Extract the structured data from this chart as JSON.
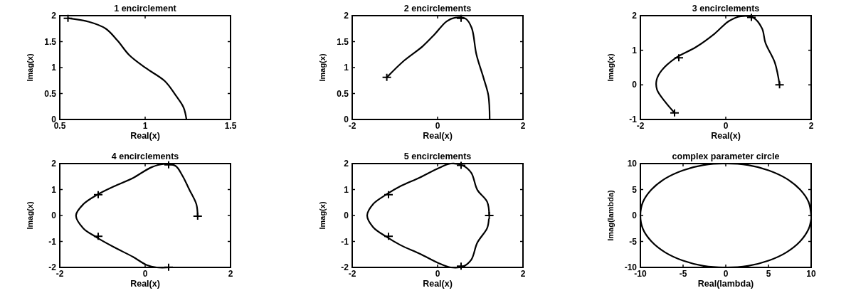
{
  "chart_data": [
    {
      "type": "line",
      "title": "1 encirclement",
      "xlabel": "Real(x)",
      "ylabel": "Imag(x)",
      "xlim": [
        0.5,
        1.5
      ],
      "xticks": [
        {
          "value": 0.5,
          "label": "0.5"
        },
        1,
        1.5
      ],
      "ylim": [
        0,
        2
      ],
      "yticks": [
        0,
        0.5,
        1,
        1.5,
        2
      ],
      "series": [
        {
          "color": "#000000",
          "x": [
            0.548,
            0.672,
            0.769,
            0.838,
            0.907,
            1.004,
            1.115,
            1.18,
            1.225,
            1.242
          ],
          "values": [
            1.95,
            1.88,
            1.75,
            1.52,
            1.24,
            0.99,
            0.74,
            0.46,
            0.23,
            0
          ]
        },
        {
          "type": "scatter",
          "marker": "cross",
          "color": "#000000",
          "x": [
            0.548
          ],
          "values": [
            1.95
          ]
        }
      ]
    },
    {
      "type": "line",
      "title": "2 encirclements",
      "xlabel": "Real(x)",
      "ylabel": "Imag(x)",
      "xlim": [
        -2,
        2
      ],
      "xticks": [
        -2,
        0,
        2
      ],
      "ylim": [
        0,
        2
      ],
      "yticks": [
        0,
        0.5,
        1,
        1.5,
        2
      ],
      "series": [
        {
          "color": "#000000",
          "x": [
            -1.19,
            -0.79,
            -0.35,
            -0.07,
            0.21,
            0.41,
            0.66,
            0.8,
            0.91,
            1.08,
            1.19,
            1.22
          ],
          "values": [
            0.81,
            1.13,
            1.41,
            1.64,
            1.89,
            1.96,
            1.94,
            1.76,
            1.25,
            0.79,
            0.46,
            0
          ]
        },
        {
          "type": "scatter",
          "marker": "cross",
          "color": "#000000",
          "x": [
            -1.19,
            0.55
          ],
          "values": [
            0.81,
            1.95
          ]
        }
      ]
    },
    {
      "type": "line",
      "title": "3 encirclements",
      "xlabel": "Real(x)",
      "ylabel": "Imag(x)",
      "xlim": [
        -2,
        2
      ],
      "xticks": [
        -2,
        0,
        2
      ],
      "ylim": [
        -1,
        2
      ],
      "yticks": [
        -1,
        0,
        1,
        2
      ],
      "series": [
        {
          "color": "#000000",
          "x": [
            -1.2,
            -1.42,
            -1.61,
            -1.62,
            -1.5,
            -1.17,
            -0.7,
            -0.26,
            0.07,
            0.35,
            0.65,
            0.85,
            0.93,
            1.15,
            1.26
          ],
          "values": [
            -0.81,
            -0.49,
            -0.14,
            0.14,
            0.42,
            0.78,
            1.09,
            1.48,
            1.84,
            1.98,
            1.94,
            1.63,
            1.21,
            0.64,
            0
          ]
        },
        {
          "type": "scatter",
          "marker": "cross",
          "color": "#000000",
          "x": [
            -1.2,
            -1.1,
            0.6,
            1.26
          ],
          "values": [
            -0.81,
            0.78,
            1.95,
            0
          ]
        }
      ]
    },
    {
      "type": "line",
      "title": "4 encirclements",
      "xlabel": "Real(x)",
      "ylabel": "Imag(x)",
      "xlim": [
        -2,
        2
      ],
      "xticks": [
        -2,
        0,
        2
      ],
      "ylim": [
        -2,
        2
      ],
      "yticks": [
        -2,
        -1,
        0,
        1,
        2
      ],
      "series": [
        {
          "color": "#000000",
          "x": [
            0.6,
            0.27,
            0.04,
            -0.29,
            -0.73,
            -1.17,
            -1.45,
            -1.62,
            -1.45,
            -1.12,
            -0.73,
            -0.29,
            0.15,
            0.43,
            0.71,
            0.87,
            1.04,
            1.2,
            1.23
          ],
          "values": [
            -2,
            -2,
            -1.91,
            -1.59,
            -1.22,
            -0.81,
            -0.49,
            0,
            0.43,
            0.8,
            1.12,
            1.44,
            1.86,
            1.98,
            1.91,
            1.54,
            0.98,
            0.43,
            -0.03
          ]
        },
        {
          "type": "scatter",
          "marker": "cross",
          "color": "#000000",
          "x": [
            0.55,
            -1.1,
            -1.1,
            0.55,
            1.23
          ],
          "values": [
            -1.99,
            -0.8,
            0.8,
            1.95,
            -0.03
          ]
        }
      ]
    },
    {
      "type": "line",
      "title": "5 encirclements",
      "xlabel": "Real(x)",
      "ylabel": "Imag(x)",
      "xlim": [
        -2,
        2
      ],
      "xticks": [
        -2,
        0,
        2
      ],
      "ylim": [
        -2,
        2
      ],
      "yticks": [
        -2,
        -1,
        0,
        1,
        2
      ],
      "series": [
        {
          "color": "#000000",
          "x": [
            1.21,
            1.16,
            0.93,
            0.79,
            0.6,
            0.31,
            0.03,
            -0.42,
            -0.87,
            -1.2,
            -1.51,
            -1.65,
            -1.51,
            -1.2,
            -0.87,
            -0.42,
            0.03,
            0.31,
            0.6,
            0.79,
            0.93,
            1.16,
            1.2
          ],
          "values": [
            0,
            0.53,
            0.99,
            1.64,
            1.92,
            2,
            1.83,
            1.46,
            1.13,
            0.81,
            0.44,
            0,
            -0.45,
            -0.82,
            -1.14,
            -1.47,
            -1.84,
            -2,
            -1.96,
            -1.7,
            -1.05,
            -0.49,
            -0.15
          ]
        },
        {
          "type": "scatter",
          "marker": "cross",
          "color": "#000000",
          "x": [
            1.21,
            0.55,
            -1.15,
            -1.15,
            0.55
          ],
          "values": [
            0,
            1.93,
            0.8,
            -0.8,
            -1.95
          ]
        }
      ]
    },
    {
      "type": "line",
      "title": "complex parameter circle",
      "xlabel": "Real(lambda)",
      "ylabel": "Imag(lambda)",
      "xlim": [
        -10,
        10
      ],
      "xticks": [
        -10,
        -5,
        0,
        5,
        10
      ],
      "ylim": [
        -10,
        10
      ],
      "yticks": [
        -10,
        -5,
        0,
        5,
        10
      ],
      "series": [
        {
          "color": "#000000",
          "x": [
            10,
            9.7,
            8.7,
            7.1,
            5,
            2.6,
            0,
            -2.6,
            -5,
            -7.1,
            -8.7,
            -9.7,
            -10,
            -9.7,
            -8.7,
            -7.1,
            -5,
            -2.6,
            0,
            2.6,
            5,
            7.1,
            8.7,
            9.7,
            10
          ],
          "values": [
            0,
            2.6,
            5,
            7.1,
            8.7,
            9.7,
            10,
            9.7,
            8.7,
            7.1,
            5,
            2.6,
            0,
            -2.6,
            -5,
            -7.1,
            -8.7,
            -9.7,
            -10,
            -9.7,
            -8.7,
            -7.1,
            -5,
            -2.6,
            -0.7
          ]
        }
      ]
    }
  ]
}
